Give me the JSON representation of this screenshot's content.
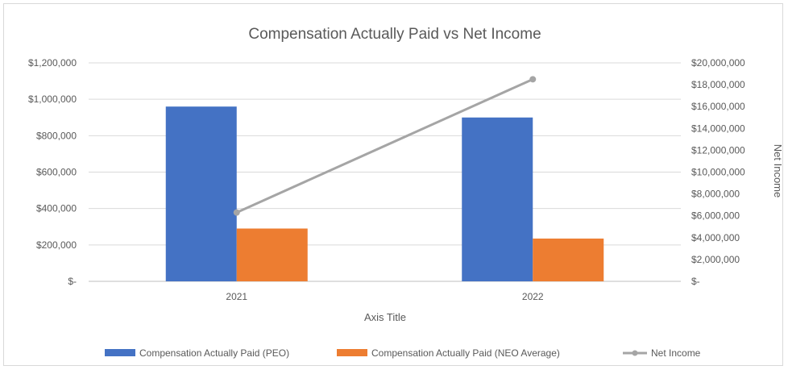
{
  "chart_data": {
    "type": "bar",
    "title": "Compensation Actually Paid vs Net Income",
    "xlabel": "Axis Title",
    "ylabel": "",
    "y2label": "Net Income",
    "categories": [
      "2021",
      "2022"
    ],
    "ylim": [
      0,
      1200000
    ],
    "y2lim": [
      0,
      20000000
    ],
    "yticks": [
      "$-",
      "$200,000",
      "$400,000",
      "$600,000",
      "$800,000",
      "$1,000,000",
      "$1,200,000"
    ],
    "y2ticks": [
      "$-",
      "$2,000,000",
      "$4,000,000",
      "$6,000,000",
      "$8,000,000",
      "$10,000,000",
      "$12,000,000",
      "$14,000,000",
      "$16,000,000",
      "$18,000,000",
      "$20,000,000"
    ],
    "grid": true,
    "legend_position": "bottom",
    "series": [
      {
        "name": "Compensation Actually Paid (PEO)",
        "type": "bar",
        "axis": "left",
        "values": [
          960000,
          900000
        ],
        "color": "#4472c4"
      },
      {
        "name": "Compensation Actually Paid (NEO Average)",
        "type": "bar",
        "axis": "left",
        "values": [
          290000,
          235000
        ],
        "color": "#ed7d31"
      },
      {
        "name": "Net Income",
        "type": "line",
        "axis": "right",
        "values": [
          6300000,
          18500000
        ],
        "color": "#a5a5a5"
      }
    ]
  }
}
